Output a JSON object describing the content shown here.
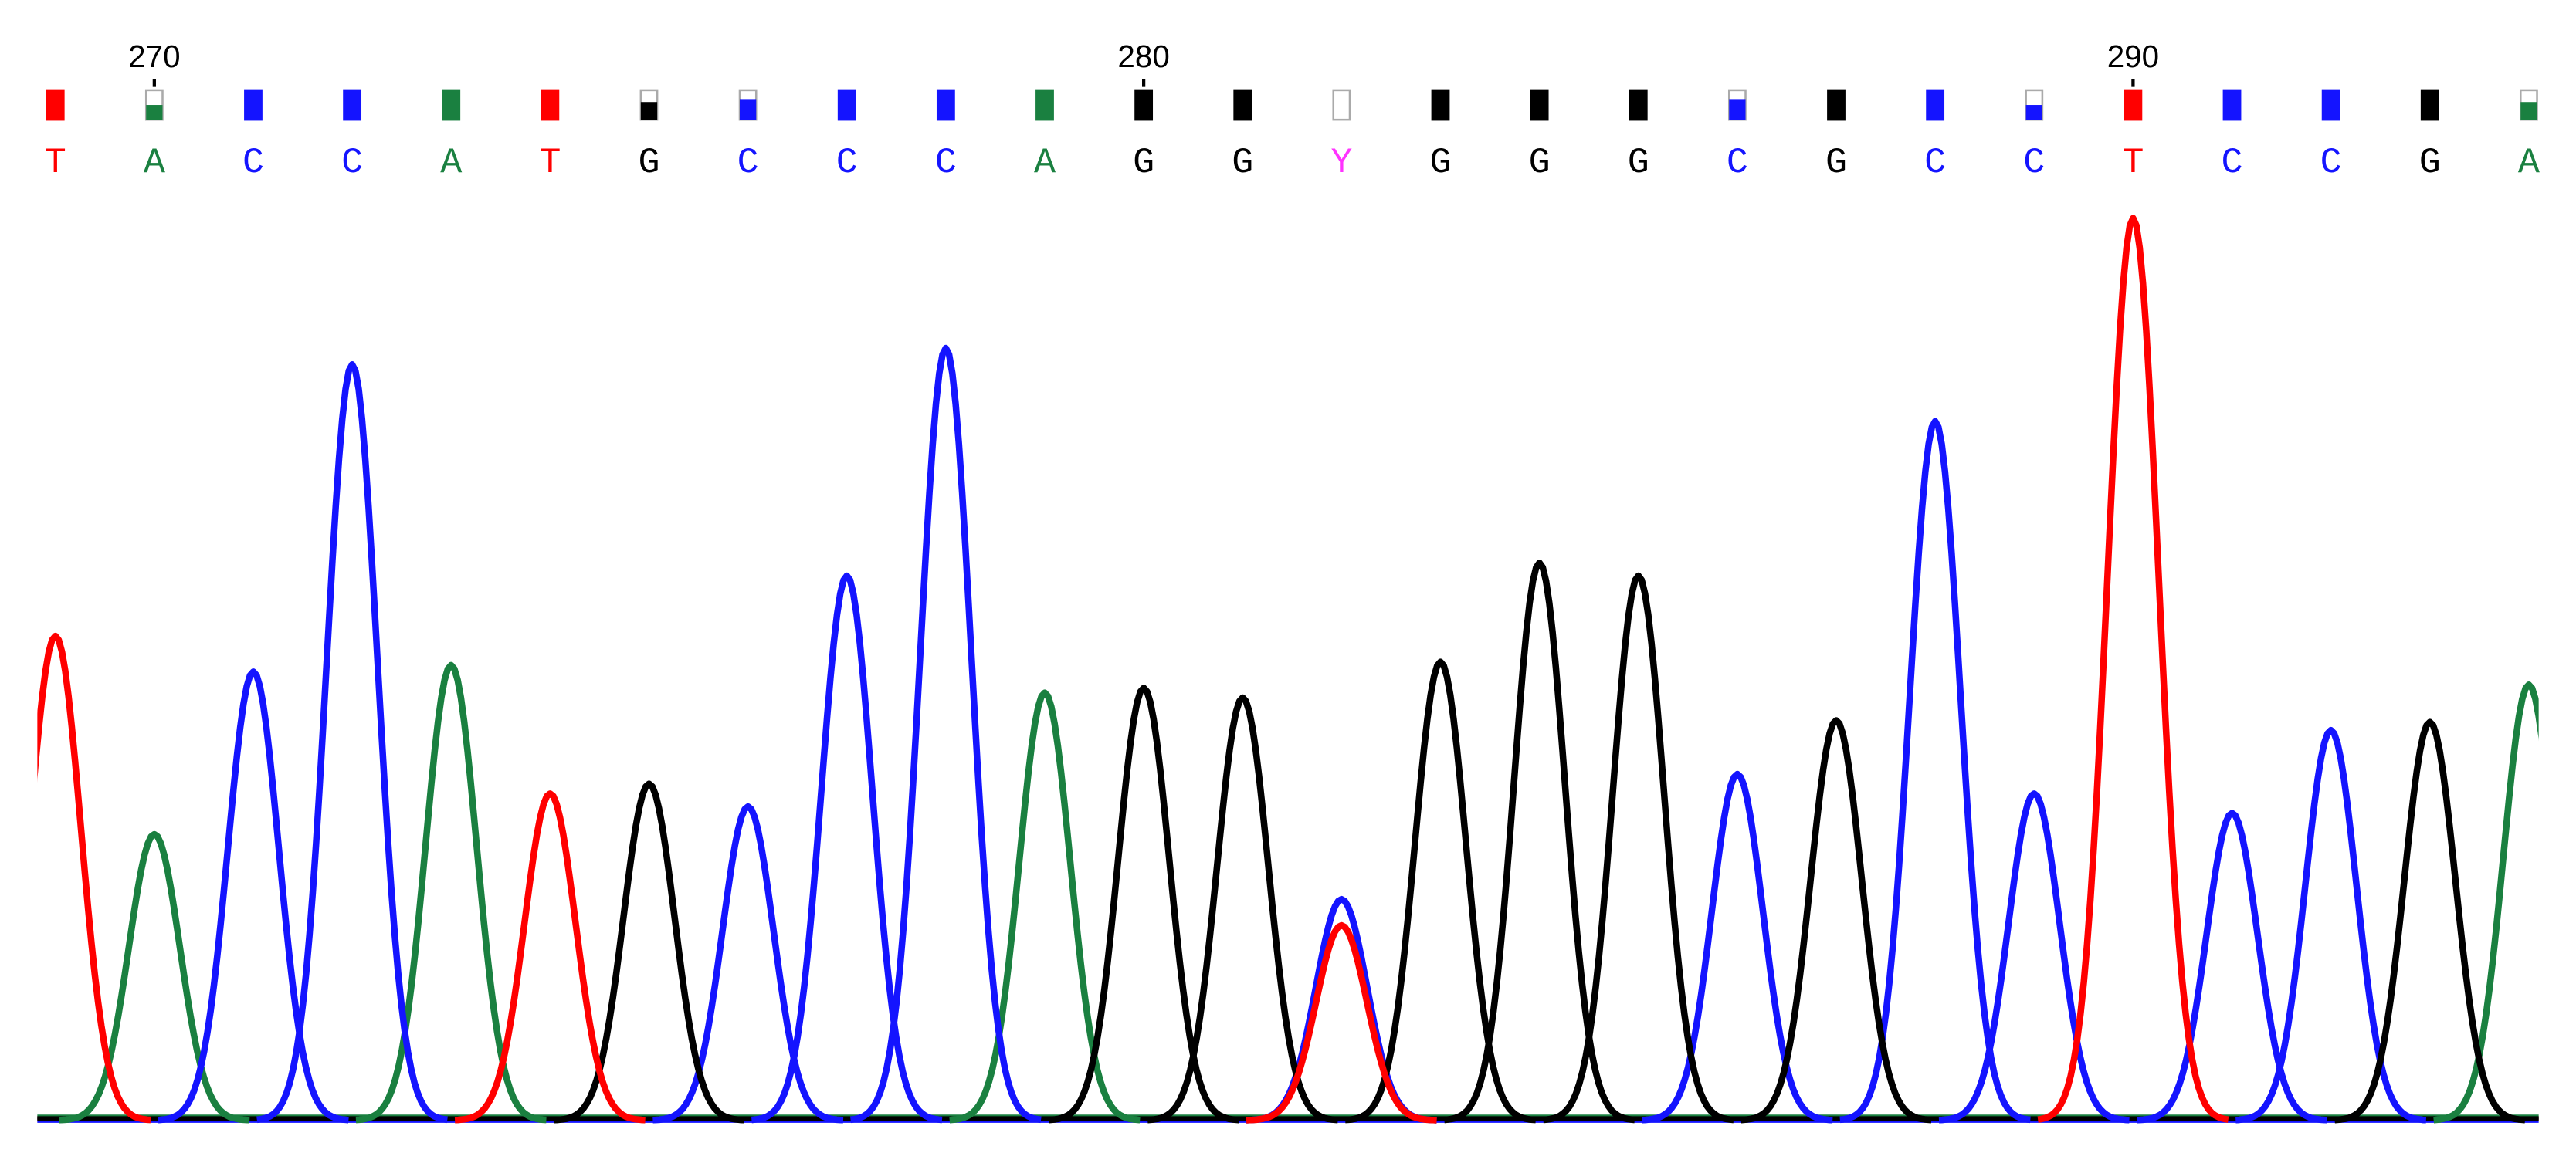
{
  "chart_data": {
    "type": "chromatogram",
    "x": [
      269,
      270,
      271,
      272,
      273,
      274,
      275,
      276,
      277,
      278,
      279,
      280,
      281,
      282,
      283,
      284,
      285,
      286,
      287,
      288,
      289,
      290,
      291,
      292,
      293,
      294
    ],
    "categories": [
      "T",
      "A",
      "C",
      "C",
      "A",
      "T",
      "G",
      "C",
      "C",
      "C",
      "A",
      "G",
      "G",
      "Y",
      "G",
      "G",
      "G",
      "C",
      "G",
      "C",
      "C",
      "T",
      "C",
      "C",
      "G",
      "A"
    ],
    "quality": [
      1,
      0.5,
      1,
      1,
      1,
      1,
      0.6,
      0.7,
      1,
      1,
      1,
      1,
      1,
      0,
      1,
      1,
      1,
      0.7,
      1,
      1,
      0.5,
      1,
      1,
      1,
      1,
      0.6
    ],
    "letter_colors": {
      "A": "#1a8040",
      "C": "#1414ff",
      "G": "#000000",
      "T": "#ff0000",
      "Y": "#ff33ff"
    },
    "xticks": [
      270,
      280,
      290
    ],
    "ylim": [
      0,
      560
    ],
    "series": [
      {
        "name": "A",
        "color": "#1a8040",
        "values": [
          null,
          176,
          null,
          null,
          280,
          null,
          null,
          null,
          null,
          null,
          263,
          null,
          null,
          null,
          null,
          null,
          null,
          null,
          null,
          null,
          null,
          null,
          null,
          null,
          null,
          268
        ]
      },
      {
        "name": "C",
        "color": "#1414ff",
        "values": [
          null,
          null,
          276,
          465,
          null,
          null,
          null,
          193,
          335,
          475,
          null,
          null,
          null,
          136,
          null,
          null,
          null,
          213,
          null,
          430,
          201,
          null,
          189,
          240,
          null,
          null
        ]
      },
      {
        "name": "G",
        "color": "#000000",
        "values": [
          null,
          null,
          null,
          null,
          null,
          null,
          207,
          null,
          null,
          null,
          null,
          266,
          260,
          null,
          282,
          343,
          335,
          null,
          246,
          null,
          null,
          null,
          null,
          null,
          245,
          null
        ]
      },
      {
        "name": "T",
        "color": "#ff0000",
        "values": [
          298,
          null,
          null,
          null,
          null,
          201,
          null,
          null,
          null,
          null,
          null,
          null,
          null,
          120,
          null,
          null,
          null,
          null,
          null,
          null,
          null,
          555,
          null,
          null,
          null,
          null
        ]
      }
    ]
  }
}
